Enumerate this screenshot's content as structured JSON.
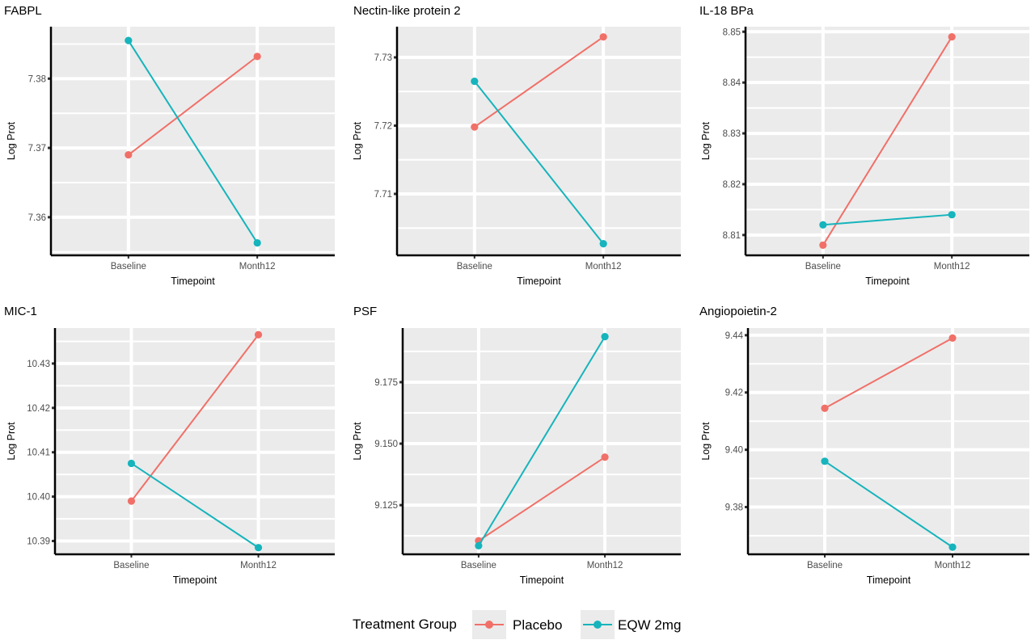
{
  "chart_data": [
    {
      "type": "line",
      "title": "FABPL",
      "xlabel": "Timepoint",
      "ylabel": "Log Prot",
      "categories": [
        "Baseline",
        "Month12"
      ],
      "yticks": [
        "7.36",
        "7.37",
        "7.38"
      ],
      "ylim": [
        7.3545,
        7.3875
      ],
      "grid": true,
      "series": [
        {
          "name": "Placebo",
          "values": [
            7.369,
            7.3832
          ]
        },
        {
          "name": "EQW 2mg",
          "values": [
            7.3855,
            7.3563
          ]
        }
      ]
    },
    {
      "type": "line",
      "title": "Nectin-like protein 2",
      "xlabel": "Timepoint",
      "ylabel": "Log Prot",
      "categories": [
        "Baseline",
        "Month12"
      ],
      "yticks": [
        "7.71",
        "7.72",
        "7.73"
      ],
      "ylim": [
        7.701,
        7.7345
      ],
      "grid": true,
      "series": [
        {
          "name": "Placebo",
          "values": [
            7.7198,
            7.733
          ]
        },
        {
          "name": "EQW 2mg",
          "values": [
            7.7265,
            7.7027
          ]
        }
      ]
    },
    {
      "type": "line",
      "title": "IL-18 BPa",
      "xlabel": "Timepoint",
      "ylabel": "Log Prot",
      "categories": [
        "Baseline",
        "Month12"
      ],
      "yticks": [
        "8.81",
        "8.82",
        "8.83",
        "8.84",
        "8.85"
      ],
      "ylim": [
        8.806,
        8.851
      ],
      "grid": true,
      "series": [
        {
          "name": "Placebo",
          "values": [
            8.808,
            8.849
          ]
        },
        {
          "name": "EQW 2mg",
          "values": [
            8.812,
            8.814
          ]
        }
      ]
    },
    {
      "type": "line",
      "title": "MIC-1",
      "xlabel": "Timepoint",
      "ylabel": "Log Prot",
      "categories": [
        "Baseline",
        "Month12"
      ],
      "yticks": [
        "10.39",
        "10.40",
        "10.41",
        "10.42",
        "10.43"
      ],
      "ylim": [
        10.387,
        10.438
      ],
      "grid": true,
      "series": [
        {
          "name": "Placebo",
          "values": [
            10.399,
            10.4365
          ]
        },
        {
          "name": "EQW 2mg",
          "values": [
            10.4075,
            10.3885
          ]
        }
      ]
    },
    {
      "type": "line",
      "title": "PSF",
      "xlabel": "Timepoint",
      "ylabel": "Log Prot",
      "categories": [
        "Baseline",
        "Month12"
      ],
      "yticks": [
        "9.125",
        "9.150",
        "9.175"
      ],
      "ylim": [
        9.105,
        9.197
      ],
      "grid": true,
      "series": [
        {
          "name": "Placebo",
          "values": [
            9.1105,
            9.1445
          ]
        },
        {
          "name": "EQW 2mg",
          "values": [
            9.1085,
            9.1935
          ]
        }
      ]
    },
    {
      "type": "line",
      "title": "Angiopoietin-2",
      "xlabel": "Timepoint",
      "ylabel": "Log Prot",
      "categories": [
        "Baseline",
        "Month12"
      ],
      "yticks": [
        "9.38",
        "9.40",
        "9.42",
        "9.44"
      ],
      "ylim": [
        9.3635,
        9.4425
      ],
      "grid": true,
      "series": [
        {
          "name": "Placebo",
          "values": [
            9.4145,
            9.439
          ]
        },
        {
          "name": "EQW 2mg",
          "values": [
            9.396,
            9.366
          ]
        }
      ]
    }
  ],
  "legend": {
    "title": "Treatment Group",
    "position": "bottom",
    "items": [
      {
        "name": "Placebo",
        "color": "#f07068"
      },
      {
        "name": "EQW 2mg",
        "color": "#16b4bc"
      }
    ]
  },
  "colors": {
    "Placebo": "#f07068",
    "EQW 2mg": "#16b4bc",
    "panel_bg": "#ebebeb",
    "grid": "#ffffff",
    "axis": "#000000"
  }
}
